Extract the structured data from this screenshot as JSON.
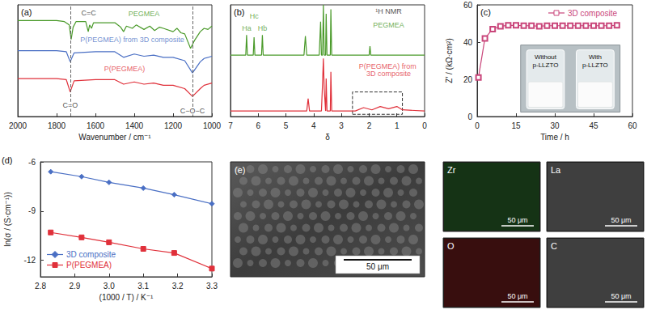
{
  "chart_data": [
    {
      "type": "line",
      "title": "(a)",
      "xlabel": "Wavenumber / cm⁻¹",
      "xlim": [
        2000,
        1000
      ],
      "xticks": [
        1000,
        1200,
        1400,
        1600,
        1800,
        2000
      ],
      "ylim": [
        0,
        10
      ],
      "tick_labels": "x",
      "grid": false,
      "vlines": [
        1730,
        1100
      ],
      "annotations": [
        {
          "text": "C=C",
          "x": 1635,
          "y": 9.3
        },
        {
          "text": "C=O",
          "x": 1730,
          "y": 1.0
        },
        {
          "text": "C−O−C",
          "x": 1100,
          "y": 0.5
        }
      ],
      "series": [
        {
          "name": "PEGMEA",
          "color": "#4a9a2a",
          "label_at": [
            1350,
            9.2
          ],
          "x": [
            2000,
            1900,
            1800,
            1760,
            1735,
            1725,
            1715,
            1700,
            1650,
            1637,
            1630,
            1620,
            1610,
            1500,
            1470,
            1455,
            1440,
            1410,
            1390,
            1350,
            1320,
            1295,
            1270,
            1250,
            1200,
            1180,
            1160,
            1140,
            1110,
            1090,
            1060,
            1040,
            1020,
            1000
          ],
          "values": [
            8.6,
            8.6,
            8.6,
            8.5,
            8.2,
            6.9,
            8.0,
            8.5,
            8.5,
            7.6,
            8.2,
            7.9,
            8.4,
            8.4,
            8.0,
            7.6,
            8.1,
            7.9,
            8.2,
            7.8,
            8.1,
            7.7,
            8.0,
            7.9,
            7.6,
            7.9,
            7.5,
            7.4,
            6.1,
            6.8,
            7.6,
            7.9,
            7.8,
            8.1
          ]
        },
        {
          "name": "P(PEGMEA) from 3D composite",
          "color": "#4a6fc4",
          "label_at": [
            1410,
            6.9
          ],
          "x": [
            2000,
            1800,
            1750,
            1730,
            1710,
            1600,
            1500,
            1455,
            1400,
            1350,
            1300,
            1250,
            1200,
            1140,
            1100,
            1060,
            1040,
            1000
          ],
          "values": [
            5.9,
            5.9,
            5.8,
            4.9,
            5.7,
            5.8,
            5.8,
            5.3,
            5.6,
            5.4,
            5.5,
            5.3,
            5.3,
            5.0,
            3.9,
            4.9,
            5.2,
            5.4
          ]
        },
        {
          "name": "P(PEGMEA)",
          "color": "#e0303a",
          "label_at": [
            1450,
            4.3
          ],
          "x": [
            2000,
            1800,
            1750,
            1730,
            1710,
            1600,
            1500,
            1455,
            1400,
            1350,
            1300,
            1250,
            1200,
            1140,
            1100,
            1060,
            1040,
            1000
          ],
          "values": [
            3.4,
            3.4,
            3.3,
            2.2,
            3.2,
            3.3,
            3.3,
            2.9,
            3.1,
            2.9,
            3.0,
            2.8,
            2.8,
            2.5,
            1.8,
            2.5,
            2.8,
            3.0
          ]
        }
      ]
    },
    {
      "type": "line",
      "title": "(b)",
      "xlabel": "δ",
      "xlim": [
        7,
        0
      ],
      "xticks": [
        0,
        1,
        2,
        3,
        4,
        5,
        6,
        7
      ],
      "ylim": [
        0,
        10
      ],
      "tick_labels": "x",
      "grid": false,
      "highlight_box": {
        "x": [
          2.6,
          0.8
        ],
        "y": [
          0.2,
          2.2
        ]
      },
      "annotations": [
        {
          "text": "¹H NMR",
          "x": 1.3,
          "y": 9.4
        },
        {
          "text": "Ha",
          "x": 6.42,
          "y": 7.9,
          "color": "#4a9a2a"
        },
        {
          "text": "Hc",
          "x": 6.15,
          "y": 9.0,
          "color": "#4a9a2a"
        },
        {
          "text": "Hb",
          "x": 5.85,
          "y": 7.9,
          "color": "#4a9a2a"
        }
      ],
      "series": [
        {
          "name": "PEGMEA",
          "color": "#4a9a2a",
          "label_at": [
            1.3,
            8.2
          ],
          "x": [
            7,
            6.45,
            6.42,
            6.39,
            6.18,
            6.15,
            6.12,
            5.88,
            5.85,
            5.82,
            4.35,
            4.3,
            4.25,
            3.8,
            3.75,
            3.72,
            3.68,
            3.65,
            3.62,
            3.57,
            3.55,
            3.52,
            3.4,
            3.38,
            3.35,
            2.0,
            1.97,
            1.94,
            0
          ],
          "values": [
            5.5,
            5.5,
            7.3,
            5.5,
            5.5,
            7.1,
            5.5,
            5.5,
            7.3,
            5.5,
            5.5,
            7.2,
            5.5,
            5.5,
            8.5,
            5.5,
            5.5,
            10,
            5.5,
            5.5,
            9.2,
            5.5,
            5.5,
            9.6,
            5.5,
            5.5,
            6.3,
            5.5,
            5.5
          ]
        },
        {
          "name": "P(PEGMEA) from 3D composite",
          "color": "#e0303a",
          "label_at": [
            1.3,
            4.2
          ],
          "x": [
            7,
            4.25,
            4.2,
            4.15,
            3.72,
            3.68,
            3.65,
            3.62,
            3.57,
            3.55,
            3.52,
            3.4,
            3.38,
            3.35,
            2.5,
            2.2,
            1.9,
            1.6,
            1.3,
            1.0,
            0.8,
            0
          ],
          "values": [
            0.5,
            0.5,
            1.6,
            0.5,
            0.5,
            3.0,
            5.2,
            2.5,
            0.5,
            3.4,
            0.5,
            0.5,
            4.0,
            0.5,
            0.5,
            0.8,
            0.6,
            0.9,
            0.7,
            0.9,
            0.6,
            0.5
          ]
        }
      ]
    },
    {
      "type": "line",
      "title": "(c)",
      "xlabel": "Time / h",
      "ylabel": "Z′ / (kΩ·cm²)",
      "xlim": [
        0,
        60
      ],
      "xticks": [
        0,
        15,
        30,
        45,
        60
      ],
      "ylim": [
        0,
        60
      ],
      "yticks": [
        0,
        20,
        40,
        60
      ],
      "grid": false,
      "legend": "upper right",
      "inset": {
        "labels": [
          "Without p-LLZTO",
          "With p-LLZTO"
        ]
      },
      "series": [
        {
          "name": "3D composite",
          "color": "#c9457a",
          "marker": "square-open",
          "x": [
            0.5,
            3,
            6,
            9,
            12,
            15,
            18,
            21,
            24,
            27,
            30,
            33,
            36,
            39,
            42,
            45,
            48,
            51,
            54
          ],
          "values": [
            21,
            42,
            47,
            48.5,
            49,
            49,
            48.8,
            48.8,
            48.5,
            48.8,
            48.8,
            48.8,
            48.8,
            48.8,
            48.8,
            48.8,
            48.8,
            48.8,
            49
          ]
        }
      ]
    },
    {
      "type": "line",
      "title": "(d)",
      "xlabel": "(1000 / T) / K⁻¹",
      "ylabel": "ln(σ / (S·cm⁻¹))",
      "xlim": [
        2.8,
        3.3
      ],
      "xticks": [
        2.8,
        2.9,
        {
          "value": 3,
          "label": "3.0"
        },
        3.1,
        3.2,
        3.3
      ],
      "ylim": [
        -13,
        -6
      ],
      "yticks": [
        -12,
        -9,
        -6
      ],
      "grid": false,
      "legend": "lower left",
      "series": [
        {
          "name": "3D composite",
          "color": "#4a6fc4",
          "marker": "diamond",
          "x": [
            2.83,
            2.92,
            3.0,
            3.1,
            3.19,
            3.3
          ],
          "values": [
            -6.6,
            -6.9,
            -7.25,
            -7.6,
            -8.0,
            -8.55
          ]
        },
        {
          "name": "P(PEGMEA)",
          "color": "#e0303a",
          "marker": "square",
          "x": [
            2.83,
            2.92,
            3.0,
            3.1,
            3.19,
            3.3
          ],
          "values": [
            -10.3,
            -10.6,
            -10.9,
            -11.3,
            -11.55,
            -12.5
          ]
        }
      ]
    }
  ],
  "sem_image": {
    "title": "(e)",
    "scale_bar": "50 μm"
  },
  "eds_maps": [
    {
      "element": "Zr",
      "color": "#3fae3f",
      "scale_bar": "50 μm"
    },
    {
      "element": "La",
      "color": "#d8d8d8",
      "scale_bar": "50 μm"
    },
    {
      "element": "O",
      "color": "#c02828",
      "scale_bar": "50 μm"
    },
    {
      "element": "C",
      "color": "#d8d8d8",
      "scale_bar": "50 μm"
    }
  ]
}
